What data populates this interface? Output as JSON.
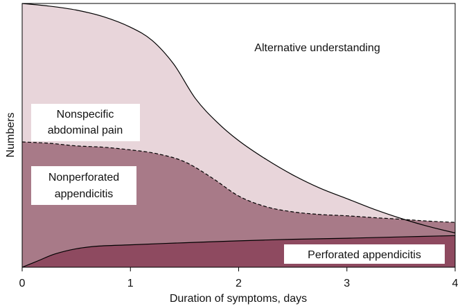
{
  "chart_data": {
    "type": "area",
    "xlabel": "Duration of symptoms, days",
    "ylabel": "Numbers",
    "xlim": [
      0,
      4
    ],
    "ylim": [
      0,
      100
    ],
    "x_ticks": [
      "0",
      "1",
      "2",
      "3",
      "4"
    ],
    "grid": false,
    "legend": "none",
    "curves": [
      {
        "id": "total",
        "style": "solid",
        "points": [
          [
            0,
            100
          ],
          [
            0.25,
            99
          ],
          [
            0.5,
            97.5
          ],
          [
            0.75,
            95
          ],
          [
            1,
            91
          ],
          [
            1.2,
            86
          ],
          [
            1.4,
            77
          ],
          [
            1.6,
            64
          ],
          [
            1.8,
            55
          ],
          [
            2,
            48
          ],
          [
            2.25,
            41
          ],
          [
            2.5,
            35
          ],
          [
            2.75,
            30
          ],
          [
            3,
            26
          ],
          [
            3.25,
            22
          ],
          [
            3.5,
            18.5
          ],
          [
            3.75,
            15.5
          ],
          [
            4,
            13
          ]
        ]
      },
      {
        "id": "nonspecific_lower",
        "style": "dashed",
        "points": [
          [
            0,
            47.5
          ],
          [
            0.25,
            47
          ],
          [
            0.5,
            46
          ],
          [
            0.75,
            45.5
          ],
          [
            1,
            44.5
          ],
          [
            1.25,
            43
          ],
          [
            1.5,
            40
          ],
          [
            1.75,
            34
          ],
          [
            2,
            27
          ],
          [
            2.25,
            23
          ],
          [
            2.5,
            21
          ],
          [
            2.75,
            20
          ],
          [
            3,
            19.5
          ],
          [
            3.25,
            18.8
          ],
          [
            3.5,
            18.2
          ],
          [
            3.75,
            17.5
          ],
          [
            4,
            17
          ]
        ]
      },
      {
        "id": "perforated_upper",
        "style": "solid",
        "points": [
          [
            0,
            0
          ],
          [
            0.15,
            2.5
          ],
          [
            0.3,
            5
          ],
          [
            0.5,
            7
          ],
          [
            0.7,
            8
          ],
          [
            1,
            8.5
          ],
          [
            1.5,
            9.3
          ],
          [
            2,
            10
          ],
          [
            2.5,
            10.6
          ],
          [
            3,
            11
          ],
          [
            3.5,
            11.5
          ],
          [
            4,
            12
          ]
        ]
      }
    ],
    "regions": [
      {
        "name": "Alternative understanding",
        "color": "#ffffff"
      },
      {
        "name": "Nonspecific abdominal pain",
        "color": "#e8d5da"
      },
      {
        "name": "Nonperforated appendicitis",
        "color": "#a87a88"
      },
      {
        "name": "Perforated appendicitis",
        "color": "#8e4a60"
      }
    ],
    "annotations": {
      "alternative": "Alternative understanding",
      "nonspecific_line1": "Nonspecific",
      "nonspecific_line2": "abdominal pain",
      "nonperforated_line1": "Nonperforated",
      "nonperforated_line2": "appendicitis",
      "perforated": "Perforated appendicitis"
    }
  }
}
